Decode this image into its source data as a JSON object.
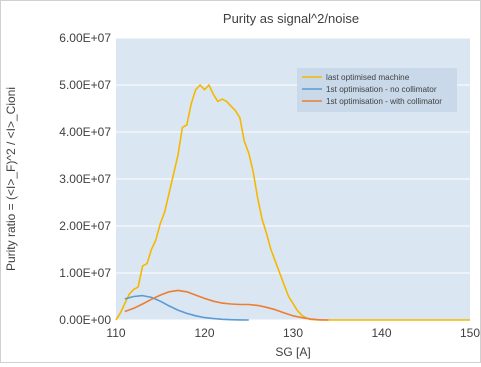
{
  "chart_data": {
    "type": "line",
    "title": "Purity as signal^2/noise",
    "xlabel": "SG [A]",
    "ylabel": "Purity ratio = (<I>_F)^2 / <I>_Cioni",
    "xlim": [
      110,
      150
    ],
    "ylim": [
      0,
      60000000
    ],
    "x_ticks": [
      110,
      120,
      130,
      140,
      150
    ],
    "x_tick_labels": [
      "110",
      "120",
      "130",
      "140",
      "150"
    ],
    "y_ticks": [
      0,
      10000000,
      20000000,
      30000000,
      40000000,
      50000000,
      60000000
    ],
    "y_tick_labels": [
      "0.00E+00",
      "1.00E+07",
      "2.00E+07",
      "3.00E+07",
      "4.00E+07",
      "5.00E+07",
      "6.00E+07"
    ],
    "grid": "horizontal",
    "legend_position": "top-right",
    "series": [
      {
        "name": "last optimised machine",
        "color": "#f5b800",
        "points": [
          [
            110.0,
            0
          ],
          [
            110.5,
            1500000
          ],
          [
            111.0,
            3500000
          ],
          [
            111.5,
            5500000
          ],
          [
            112.0,
            6500000
          ],
          [
            112.5,
            7000000
          ],
          [
            113.0,
            11500000
          ],
          [
            113.5,
            12000000
          ],
          [
            114.0,
            15000000
          ],
          [
            114.5,
            17000000
          ],
          [
            115.0,
            20500000
          ],
          [
            115.5,
            23000000
          ],
          [
            116.0,
            27000000
          ],
          [
            116.5,
            31000000
          ],
          [
            117.0,
            35000000
          ],
          [
            117.5,
            41000000
          ],
          [
            118.0,
            41500000
          ],
          [
            118.5,
            46000000
          ],
          [
            119.0,
            49000000
          ],
          [
            119.5,
            50000000
          ],
          [
            120.0,
            49000000
          ],
          [
            120.5,
            50000000
          ],
          [
            121.0,
            48000000
          ],
          [
            121.5,
            46500000
          ],
          [
            122.0,
            47000000
          ],
          [
            122.5,
            46500000
          ],
          [
            123.0,
            45500000
          ],
          [
            123.5,
            44500000
          ],
          [
            124.0,
            43000000
          ],
          [
            124.5,
            38000000
          ],
          [
            125.0,
            35500000
          ],
          [
            125.5,
            31500000
          ],
          [
            126.0,
            26000000
          ],
          [
            126.5,
            21500000
          ],
          [
            127.0,
            18500000
          ],
          [
            127.5,
            15000000
          ],
          [
            128.0,
            12500000
          ],
          [
            128.5,
            10000000
          ],
          [
            129.0,
            7500000
          ],
          [
            129.5,
            5000000
          ],
          [
            130.0,
            3500000
          ],
          [
            130.5,
            2000000
          ],
          [
            131.0,
            1000000
          ],
          [
            131.5,
            400000
          ],
          [
            132.0,
            100000
          ],
          [
            133.0,
            0
          ],
          [
            135.0,
            0
          ],
          [
            140.0,
            0
          ],
          [
            145.0,
            0
          ],
          [
            150.0,
            0
          ]
        ]
      },
      {
        "name": "1st optimisation - no collimator",
        "color": "#5b9bd5",
        "points": [
          [
            111.0,
            4500000
          ],
          [
            112.0,
            5000000
          ],
          [
            113.0,
            5200000
          ],
          [
            114.0,
            4800000
          ],
          [
            115.0,
            4000000
          ],
          [
            116.0,
            3000000
          ],
          [
            117.0,
            2100000
          ],
          [
            118.0,
            1400000
          ],
          [
            119.0,
            900000
          ],
          [
            120.0,
            500000
          ],
          [
            121.0,
            300000
          ],
          [
            122.0,
            150000
          ],
          [
            123.0,
            60000
          ],
          [
            124.0,
            20000
          ],
          [
            125.0,
            0
          ]
        ]
      },
      {
        "name": "1st optimisation - with collimator",
        "color": "#ed7d31",
        "points": [
          [
            111.0,
            1800000
          ],
          [
            112.0,
            2500000
          ],
          [
            113.0,
            3400000
          ],
          [
            114.0,
            4400000
          ],
          [
            115.0,
            5300000
          ],
          [
            116.0,
            6000000
          ],
          [
            117.0,
            6300000
          ],
          [
            118.0,
            6000000
          ],
          [
            119.0,
            5300000
          ],
          [
            120.0,
            4600000
          ],
          [
            121.0,
            4000000
          ],
          [
            122.0,
            3600000
          ],
          [
            123.0,
            3400000
          ],
          [
            124.0,
            3300000
          ],
          [
            125.0,
            3300000
          ],
          [
            126.0,
            3100000
          ],
          [
            127.0,
            2700000
          ],
          [
            128.0,
            2200000
          ],
          [
            129.0,
            1500000
          ],
          [
            130.0,
            900000
          ],
          [
            131.0,
            500000
          ],
          [
            132.0,
            200000
          ],
          [
            133.0,
            50000
          ],
          [
            134.0,
            0
          ]
        ]
      }
    ]
  }
}
